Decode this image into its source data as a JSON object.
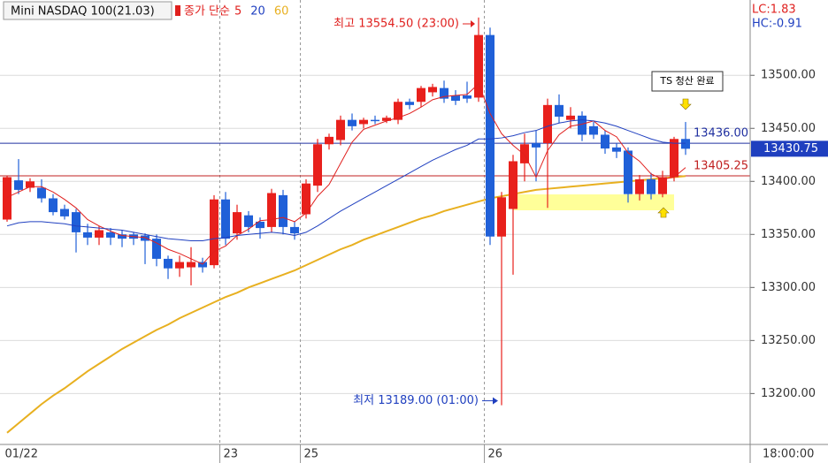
{
  "chart_data": {
    "type": "candlestick",
    "title": "Mini NASDAQ 100(21.03)",
    "legend": {
      "label": "종가 단순",
      "periods": [
        "5",
        "20",
        "60"
      ]
    },
    "stats": [
      {
        "text": "LC:1.83",
        "color": "#e0201e"
      },
      {
        "text": "HC:-0.91",
        "color": "#2040c0"
      }
    ],
    "categories": [
      "01/22",
      null,
      null,
      null,
      null,
      null,
      null,
      null,
      null,
      null,
      null,
      null,
      null,
      null,
      null,
      null,
      null,
      null,
      null,
      "23",
      null,
      null,
      null,
      null,
      null,
      null,
      "25",
      null,
      null,
      null,
      null,
      null,
      null,
      null,
      null,
      null,
      null,
      null,
      null,
      null,
      null,
      null,
      "26",
      null,
      null,
      null,
      null,
      null,
      null,
      null,
      null,
      null,
      null,
      null,
      null,
      null,
      null,
      null,
      null,
      null
    ],
    "time_label": "18:00:00",
    "up_color": "#e8201c",
    "down_color": "#2060d8",
    "ohlc": {
      "open": [
        13364,
        13401,
        13394,
        13394,
        13384,
        13374,
        13371,
        13352,
        13347,
        13352,
        13350,
        13350,
        13349,
        13346,
        13327,
        13318,
        13319,
        13324,
        13321,
        13383,
        13351,
        13368,
        13362,
        13357,
        13387,
        13357,
        13369,
        13396,
        13435,
        13439,
        13458,
        13454,
        13458,
        13457,
        13458,
        13475,
        13475,
        13484,
        13488,
        13481,
        13481,
        13479,
        13538,
        13348,
        13374,
        13417,
        13436,
        13436,
        13472,
        13458,
        13462,
        13452,
        13444,
        13432,
        13429,
        13388,
        13402,
        13388,
        13404,
        13440
      ],
      "high": [
        13405,
        13421,
        13403,
        13402,
        13388,
        13378,
        13374,
        13360,
        13358,
        13356,
        13354,
        13352,
        13351,
        13350,
        13330,
        13330,
        13338,
        13328,
        13387,
        13390,
        13378,
        13372,
        13366,
        13393,
        13392,
        13362,
        13402,
        13440,
        13445,
        13462,
        13464,
        13460,
        13462,
        13462,
        13478,
        13478,
        13490,
        13492,
        13495,
        13486,
        13494,
        13554.5,
        13545,
        13390,
        13425,
        13445,
        13448,
        13478,
        13482,
        13470,
        13466,
        13456,
        13448,
        13436,
        13432,
        13406,
        13408,
        13410,
        13442,
        13456
      ],
      "low": [
        13362,
        13388,
        13390,
        13380,
        13368,
        13364,
        13333,
        13340,
        13340,
        13340,
        13338,
        13340,
        13322,
        13320,
        13308,
        13310,
        13302,
        13314,
        13318,
        13340,
        13345,
        13352,
        13346,
        13352,
        13350,
        13345,
        13365,
        13390,
        13430,
        13434,
        13448,
        13450,
        13454,
        13455,
        13454,
        13468,
        13470,
        13480,
        13474,
        13472,
        13474,
        13475,
        13340,
        13189,
        13312,
        13400,
        13400,
        13375,
        13455,
        13450,
        13438,
        13440,
        13426,
        13422,
        13380,
        13382,
        13383,
        13385,
        13400,
        13425
      ],
      "close": [
        13404,
        13392,
        13400,
        13384,
        13371,
        13367,
        13352,
        13347,
        13354,
        13347,
        13346,
        13346,
        13344,
        13327,
        13318,
        13324,
        13324,
        13319,
        13383,
        13346,
        13371,
        13357,
        13356,
        13389,
        13357,
        13351,
        13398,
        13435,
        13442,
        13458,
        13452,
        13458,
        13457,
        13460,
        13475,
        13472,
        13488,
        13489,
        13478,
        13476,
        13478,
        13538,
        13348,
        13385,
        13419,
        13435,
        13432,
        13472,
        13461,
        13462,
        13444,
        13444,
        13431,
        13428,
        13388,
        13402,
        13388,
        13404,
        13440,
        13430.75
      ]
    },
    "series": [
      {
        "name": "5",
        "color": "#e0201e",
        "values": [
          13385,
          13390,
          13395,
          13395,
          13390,
          13383,
          13375,
          13364,
          13358,
          13353,
          13349,
          13348,
          13347,
          13342,
          13336,
          13332,
          13327,
          13322,
          13334,
          13339,
          13349,
          13355,
          13363,
          13364,
          13366,
          13362,
          13370,
          13386,
          13397,
          13417,
          13437,
          13449,
          13453,
          13457,
          13460,
          13464,
          13470,
          13477,
          13480,
          13481,
          13482,
          13492,
          13464,
          13445,
          13434,
          13425,
          13404,
          13429,
          13444,
          13452,
          13454,
          13457,
          13448,
          13442,
          13427,
          13419,
          13407,
          13402,
          13404,
          13413
        ]
      },
      {
        "name": "20",
        "color": "#2040c0",
        "values": [
          13358,
          13361,
          13362,
          13362,
          13361,
          13360,
          13358,
          13357,
          13356,
          13355,
          13354,
          13352,
          13350,
          13348,
          13346,
          13345,
          13344,
          13344,
          13346,
          13347,
          13349,
          13350,
          13351,
          13352,
          13351,
          13349,
          13352,
          13358,
          13365,
          13372,
          13378,
          13384,
          13390,
          13396,
          13402,
          13408,
          13414,
          13420,
          13425,
          13430,
          13434,
          13440,
          13440,
          13441,
          13443,
          13446,
          13448,
          13452,
          13455,
          13457,
          13458,
          13457,
          13455,
          13452,
          13448,
          13444,
          13440,
          13437,
          13436,
          13436
        ]
      },
      {
        "name": "60",
        "color": "#e8b020",
        "values": [
          13163,
          13172,
          13181,
          13190,
          13198,
          13205,
          13213,
          13221,
          13228,
          13235,
          13242,
          13248,
          13254,
          13260,
          13265,
          13271,
          13276,
          13281,
          13286,
          13291,
          13295,
          13300,
          13304,
          13308,
          13312,
          13316,
          13321,
          13326,
          13331,
          13336,
          13340,
          13345,
          13349,
          13353,
          13357,
          13361,
          13365,
          13368,
          13372,
          13375,
          13378,
          13381,
          13384,
          13386,
          13388,
          13390,
          13392,
          13393,
          13394,
          13395,
          13396,
          13397,
          13398,
          13399,
          13400,
          13401,
          13402,
          13403,
          13404,
          13405
        ]
      }
    ],
    "hlines": [
      {
        "value": 13436.0,
        "label": "13436.00",
        "color": "#2030a0"
      },
      {
        "value": 13405.25,
        "label": "13405.25",
        "color": "#c02020"
      }
    ],
    "last_price": {
      "value": 13430.75,
      "label": "13430.75"
    },
    "annotations": {
      "high": "최고 13554.50 (23:00)",
      "low": "최저 13189.00 (01:00)",
      "note": "TS 청산 완료"
    },
    "ylim": [
      13152,
      13571
    ],
    "yticks": [
      {
        "value": 13200,
        "label": "13200.00"
      },
      {
        "value": 13250,
        "label": "13250.00"
      },
      {
        "value": 13300,
        "label": "13300.00"
      },
      {
        "value": 13350,
        "label": "13350.00"
      },
      {
        "value": 13400,
        "label": "13400.00"
      },
      {
        "value": 13450,
        "label": "13450.00"
      },
      {
        "value": 13500,
        "label": "13500.00"
      }
    ],
    "grid": true
  }
}
